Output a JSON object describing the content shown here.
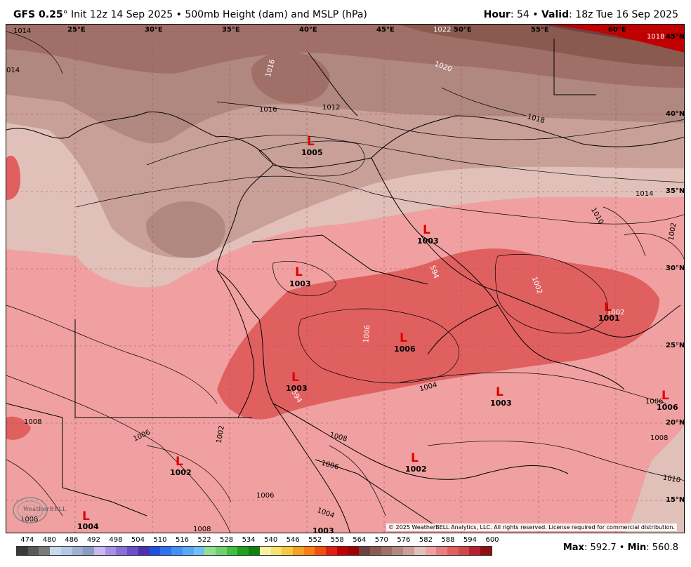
{
  "header": {
    "model": "GFS 0.25",
    "degree": "°",
    "init": " Init 12z 14 Sep 2025 • 500mb Height (dam) and MSLP (hPa)",
    "hour_label": "Hour",
    "hour_value": ": 54 • ",
    "valid_label": "Valid",
    "valid_value": ": 18z Tue 16 Sep 2025"
  },
  "longitudes": [
    "25°E",
    "30°E",
    "35°E",
    "40°E",
    "45°E",
    "50°E",
    "55°E",
    "60°E"
  ],
  "latitudes": [
    "45°N",
    "40°N",
    "35°N",
    "30°N",
    "25°N",
    "20°N",
    "15°N"
  ],
  "lows": [
    {
      "letter": "L",
      "value": "1005"
    },
    {
      "letter": "L",
      "value": "1003"
    },
    {
      "letter": "L",
      "value": "1003"
    },
    {
      "letter": "L",
      "value": "1001"
    },
    {
      "letter": "L",
      "value": "1006"
    },
    {
      "letter": "L",
      "value": "1003"
    },
    {
      "letter": "L",
      "value": "1003"
    },
    {
      "letter": "L",
      "value": "1006"
    },
    {
      "letter": "L",
      "value": "1002"
    },
    {
      "letter": "L",
      "value": "1002"
    },
    {
      "letter": "L",
      "value": "1004"
    },
    {
      "letter": "L",
      "value": "1003"
    }
  ],
  "isobar_labels": [
    "1014",
    "1022",
    "1018",
    "1016",
    "1020",
    "1016",
    "1012",
    "1018",
    "1014",
    "1010",
    "1002",
    "1002",
    "1006",
    "1004",
    "1006",
    "1008",
    "1010",
    "1008",
    "1006",
    "1002",
    "1008",
    "1006",
    "1006",
    "1008",
    "1004",
    "1008",
    "594",
    "594",
    "1002",
    "014"
  ],
  "copyright": "© 2025 WeatherBELL Analytics, LLC. All rights reserved. License required for commercial distribution.",
  "logo": "WeatherBELL",
  "colorbar": {
    "labels": [
      "474",
      "480",
      "486",
      "492",
      "498",
      "504",
      "510",
      "516",
      "522",
      "528",
      "534",
      "540",
      "546",
      "552",
      "558",
      "564",
      "570",
      "576",
      "582",
      "588",
      "594",
      "600"
    ],
    "colors": [
      "#3a3a3a",
      "#5a5a5a",
      "#7a7a7a",
      "#c8d8ee",
      "#b4c8e6",
      "#a0b0d0",
      "#8c9cc0",
      "#c8b8f0",
      "#a890e8",
      "#8870d8",
      "#6a50c8",
      "#4c30b0",
      "#2050e0",
      "#3070f0",
      "#4090f8",
      "#58a8f8",
      "#70c0f8",
      "#90e090",
      "#70d070",
      "#40c040",
      "#20a020",
      "#108010",
      "#f8f0a0",
      "#f8e070",
      "#f8c840",
      "#f8a020",
      "#f88010",
      "#f05010",
      "#e02010",
      "#c00000",
      "#a00000",
      "#704040",
      "#8a5a50",
      "#a07068",
      "#b08880",
      "#c8a098",
      "#e0c0b8",
      "#f0a0a0",
      "#e88080",
      "#e06060",
      "#d04848",
      "#b82030",
      "#901010"
    ],
    "unit_note": ""
  },
  "stats": {
    "max_label": "Max",
    "max_value": ": 592.7 • ",
    "min_label": "Min",
    "min_value": ": 560.8"
  }
}
